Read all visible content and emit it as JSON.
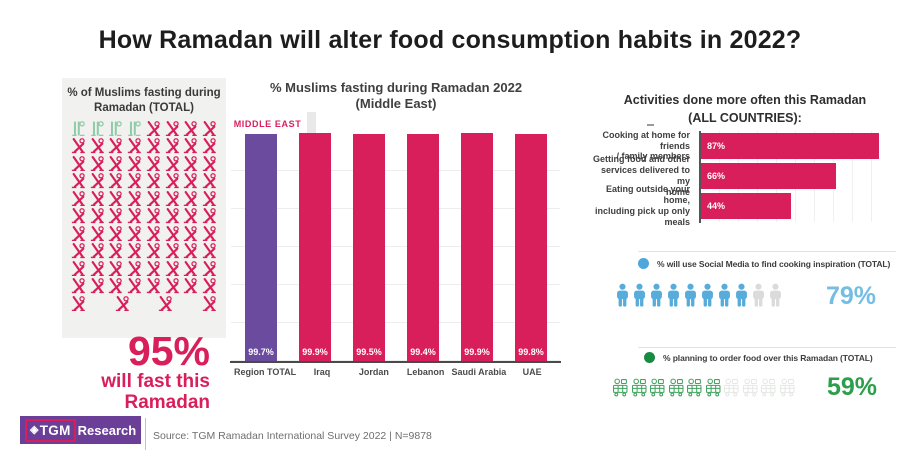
{
  "header": {
    "title": "How Ramadan will alter food consumption habits in 2022?"
  },
  "colors": {
    "crimson": "#D81F5B",
    "purple": "#6A4B9E",
    "green_icon": "#8FCBA8",
    "blue": "#58ACDC",
    "blue_text": "#74BDE5",
    "blue_dot": "#4DA7DD",
    "gray_icon": "#DBDBDB",
    "green": "#3FA45C",
    "green_text": "#2D9E4B",
    "green_dot": "#188B42",
    "pale_icon": "#E5E8E5",
    "logo_purple": "#6B3F97"
  },
  "fasting_panel": {
    "title_line1": "% of Muslims fasting during",
    "title_line2": "Ramadan (TOTAL)",
    "big_percent": "95%",
    "caption_line1": "will fast this",
    "caption_line2": "Ramadan"
  },
  "middle_chart": {
    "title_line1": "% Muslims fasting during Ramadan 2022",
    "title_line2": "(Middle East)",
    "tab_label": "MIDDLE EAST"
  },
  "activities_chart": {
    "title_line1": "Activities done more often this Ramadan",
    "title_line2": "(ALL COUNTRIES):",
    "labels": [
      [
        "Cooking at home for friends",
        "/ family members"
      ],
      [
        "Getting food and other",
        "services delivered to my",
        "home"
      ],
      [
        "Eating outside your home,",
        "including pick up only meals"
      ]
    ]
  },
  "footer": {
    "logo_prefix": "TGM",
    "logo_suffix": "Research",
    "source": "Source: TGM Ramadan International Survey 2022 | N=9878"
  },
  "chart_data": [
    {
      "type": "bar",
      "title": "% Muslims fasting during Ramadan 2022 (Middle East)",
      "categories": [
        "Region TOTAL",
        "Iraq",
        "Jordan",
        "Lebanon",
        "Saudi Arabia",
        "UAE"
      ],
      "values": [
        99.7,
        99.9,
        99.5,
        99.4,
        99.9,
        99.8
      ],
      "value_labels": [
        "99.7%",
        "99.9%",
        "99.5%",
        "99.4%",
        "99.9%",
        "99.8%"
      ],
      "ylim": [
        0,
        100
      ],
      "bar_colors": [
        "#6A4B9E",
        "#D81F5B",
        "#D81F5B",
        "#D81F5B",
        "#D81F5B",
        "#D81F5B"
      ],
      "grid": true,
      "legend": "none",
      "xlabel": "",
      "ylabel": ""
    },
    {
      "type": "bar",
      "orientation": "horizontal",
      "title": "Activities done more often this Ramadan (ALL COUNTRIES):",
      "categories": [
        "Cooking at home for friends / family members",
        "Getting food and other services delivered to my home",
        "Eating outside your home, including pick up only meals"
      ],
      "values": [
        87,
        66,
        44
      ],
      "value_labels": [
        "87%",
        "66%",
        "44%"
      ],
      "xlim": [
        0,
        100
      ],
      "bar_color": "#D81F5B",
      "grid": true
    },
    {
      "type": "pictograph",
      "label": "% will use Social Media to find cooking inspiration (TOTAL)",
      "value": 79,
      "value_label": "79%",
      "icons_total": 10,
      "icons_filled": 8,
      "icon": "person",
      "color": "#58ACDC"
    },
    {
      "type": "pictograph",
      "label": "% planning to order food over this Ramadan (TOTAL)",
      "value": 59,
      "value_label": "59%",
      "icons_total": 10,
      "icons_filled": 6,
      "icon": "delivery-courier",
      "color": "#3FA45C"
    },
    {
      "type": "pictograph",
      "label": "% of Muslims fasting during Ramadan (TOTAL)",
      "value": 95,
      "value_label": "95%",
      "icons_total": 84,
      "icons_filled": 80,
      "icon": "fasting-person",
      "color": "#D81F5B"
    }
  ]
}
